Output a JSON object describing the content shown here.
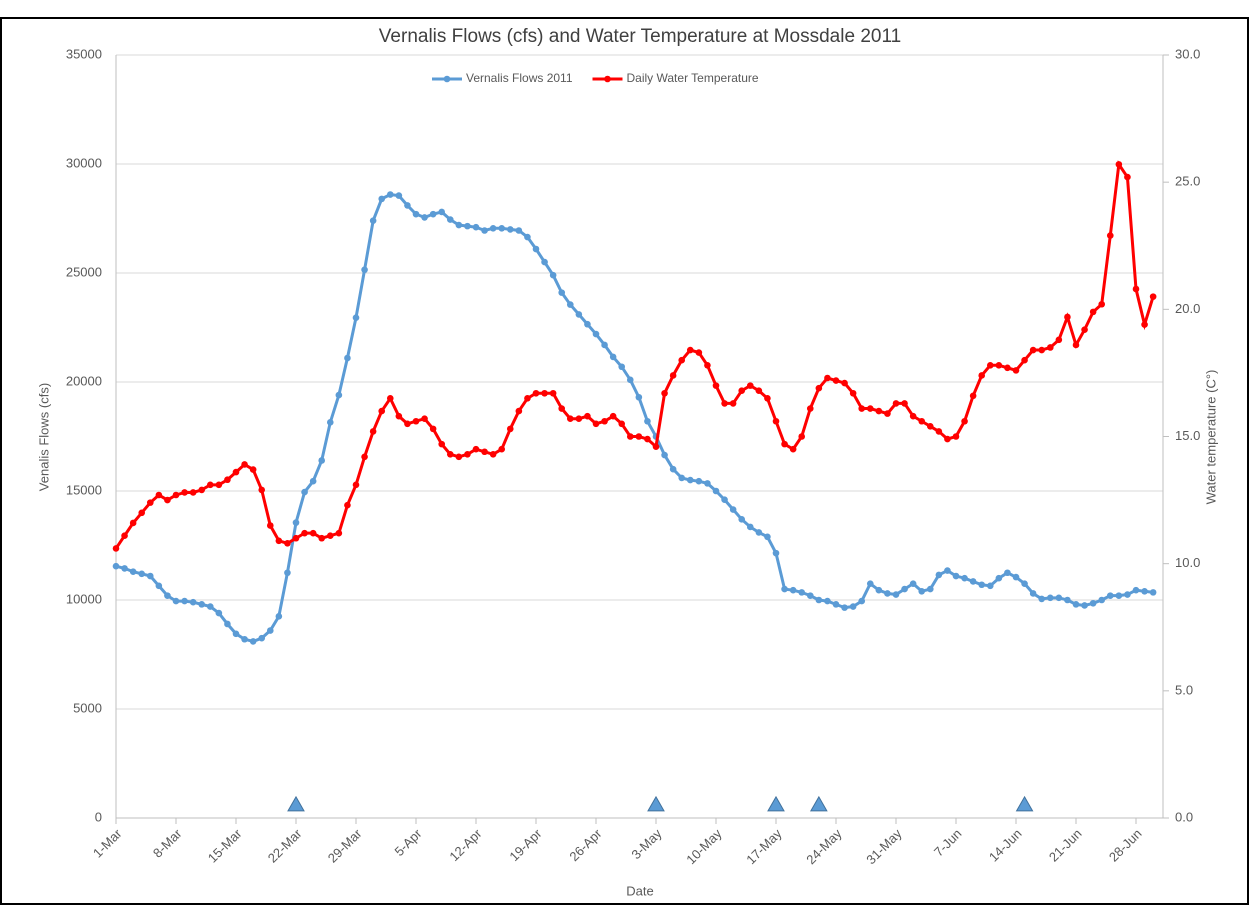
{
  "chart_data": {
    "type": "line",
    "title": "Vernalis Flows (cfs) and Water Temperature at Mossdale 2011",
    "x_label": "Date",
    "y_label": "Venalis Flows (cfs)",
    "y2_label": "Water temperature (C°)",
    "categories": [
      "1-Mar",
      null,
      null,
      null,
      null,
      null,
      null,
      "8-Mar",
      null,
      null,
      null,
      null,
      null,
      null,
      "15-Mar",
      null,
      null,
      null,
      null,
      null,
      null,
      "22-Mar",
      null,
      null,
      null,
      null,
      null,
      null,
      "29-Mar",
      null,
      null,
      null,
      null,
      null,
      null,
      "5-Apr",
      null,
      null,
      null,
      null,
      null,
      null,
      "12-Apr",
      null,
      null,
      null,
      null,
      null,
      null,
      "19-Apr",
      null,
      null,
      null,
      null,
      null,
      null,
      "26-Apr",
      null,
      null,
      null,
      null,
      null,
      null,
      "3-May",
      null,
      null,
      null,
      null,
      null,
      null,
      "10-May",
      null,
      null,
      null,
      null,
      null,
      null,
      "17-May",
      null,
      null,
      null,
      null,
      null,
      null,
      "24-May",
      null,
      null,
      null,
      null,
      null,
      null,
      "31-May",
      null,
      null,
      null,
      null,
      null,
      null,
      "7-Jun",
      null,
      null,
      null,
      null,
      null,
      null,
      "14-Jun",
      null,
      null,
      null,
      null,
      null,
      null,
      "21-Jun",
      null,
      null,
      null,
      null,
      null,
      null,
      "28-Jun",
      null,
      null
    ],
    "ylim": [
      0,
      35000
    ],
    "yticks": [
      0,
      5000,
      10000,
      15000,
      20000,
      25000,
      30000,
      35000
    ],
    "y2lim": [
      0,
      30
    ],
    "y2ticks": [
      {
        "value": 0,
        "label": "0.0"
      },
      {
        "value": 5,
        "label": "5.0"
      },
      {
        "value": 10,
        "label": "10.0"
      },
      {
        "value": 15,
        "label": "15.0"
      },
      {
        "value": 20,
        "label": "20.0"
      },
      {
        "value": 25,
        "label": "25.0"
      },
      {
        "value": 30,
        "label": "30.0"
      }
    ],
    "grid": true,
    "legend": "top",
    "series": [
      {
        "name": "Vernalis Flows 2011",
        "color": "#5b9bd5",
        "marker": "circle",
        "values": [
          11550,
          11450,
          11300,
          11200,
          11100,
          10650,
          10200,
          9950,
          9950,
          9900,
          9800,
          9700,
          9400,
          8900,
          8450,
          8200,
          8100,
          8250,
          8600,
          9250,
          11250,
          13550,
          14950,
          15450,
          16400,
          18150,
          19400,
          21100,
          22950,
          25150,
          27400,
          28400,
          28600,
          28550,
          28100,
          27700,
          27550,
          27700,
          27800,
          27450,
          27200,
          27150,
          27100,
          26950,
          27050,
          27050,
          27000,
          26950,
          26650,
          26100,
          25500,
          24900,
          24100,
          23550,
          23100,
          22650,
          22200,
          21700,
          21150,
          20700,
          20100,
          19300,
          18200,
          17500,
          16650,
          16000,
          15600,
          15500,
          15450,
          15350,
          15000,
          14600,
          14150,
          13700,
          13350,
          13100,
          12900,
          12150,
          10500,
          10450,
          10350,
          10200,
          10000,
          9950,
          9800,
          9650,
          9700,
          9950,
          10750,
          10450,
          10300,
          10250,
          10500,
          10750,
          10400,
          10500,
          11150,
          11350,
          11100,
          11000,
          10850,
          10700,
          10650,
          11000,
          11250,
          11050,
          10750,
          10300,
          10050,
          10100,
          10100,
          10000,
          9800,
          9750,
          9850,
          10000,
          10200,
          10200,
          10250,
          10450,
          10400,
          10350
        ]
      },
      {
        "name": "Daily Water Temperature",
        "color": "#ff0000",
        "marker": "circle",
        "axis": "y2",
        "values": [
          10.6,
          11.1,
          11.6,
          12.0,
          12.4,
          12.7,
          12.5,
          12.7,
          12.8,
          12.8,
          12.9,
          13.1,
          13.1,
          13.3,
          13.6,
          13.9,
          13.7,
          12.9,
          11.5,
          10.9,
          10.8,
          11.0,
          11.2,
          11.2,
          11.0,
          11.1,
          11.2,
          12.3,
          13.1,
          14.2,
          15.2,
          16.0,
          16.5,
          15.8,
          15.5,
          15.6,
          15.7,
          15.3,
          14.7,
          14.3,
          14.2,
          14.3,
          14.5,
          14.4,
          14.3,
          14.5,
          15.3,
          16.0,
          16.5,
          16.7,
          16.7,
          16.7,
          16.1,
          15.7,
          15.7,
          15.8,
          15.5,
          15.6,
          15.8,
          15.5,
          15.0,
          15.0,
          14.9,
          14.6,
          16.7,
          17.4,
          18.0,
          18.4,
          18.3,
          17.8,
          17.0,
          16.3,
          16.3,
          16.8,
          17.0,
          16.8,
          16.5,
          15.6,
          14.7,
          14.5,
          15.0,
          16.1,
          16.9,
          17.3,
          17.2,
          17.1,
          16.7,
          16.1,
          16.1,
          16.0,
          15.9,
          16.3,
          16.3,
          15.8,
          15.6,
          15.4,
          15.2,
          14.9,
          15.0,
          15.6,
          16.6,
          17.4,
          17.8,
          17.8,
          17.7,
          17.6,
          18.0,
          18.4,
          18.4,
          18.5,
          18.8,
          19.7,
          18.6,
          19.2,
          19.9,
          20.2,
          22.9,
          25.7,
          25.2,
          20.8,
          19.4,
          20.5
        ]
      },
      {
        "color": "#5b9bd5",
        "marker": "triangle",
        "values": [
          null,
          null,
          null,
          null,
          null,
          null,
          null,
          null,
          null,
          null,
          null,
          null,
          null,
          null,
          null,
          null,
          null,
          null,
          null,
          null,
          null,
          600,
          null,
          null,
          null,
          null,
          null,
          null,
          null,
          null,
          null,
          null,
          null,
          null,
          null,
          null,
          null,
          null,
          null,
          null,
          null,
          null,
          null,
          null,
          null,
          null,
          null,
          null,
          null,
          null,
          null,
          null,
          null,
          null,
          null,
          null,
          null,
          null,
          null,
          null,
          null,
          null,
          null,
          600,
          null,
          null,
          null,
          null,
          null,
          null,
          null,
          null,
          null,
          null,
          null,
          null,
          null,
          600,
          null,
          null,
          null,
          null,
          600,
          null,
          null,
          null,
          null,
          null,
          null,
          null,
          null,
          null,
          null,
          null,
          null,
          null,
          null,
          null,
          null,
          null,
          null,
          null,
          null,
          null,
          null,
          null,
          600,
          null,
          null,
          null,
          null,
          null,
          null,
          null,
          null,
          null,
          null,
          null,
          null,
          null,
          null,
          null
        ]
      }
    ]
  }
}
